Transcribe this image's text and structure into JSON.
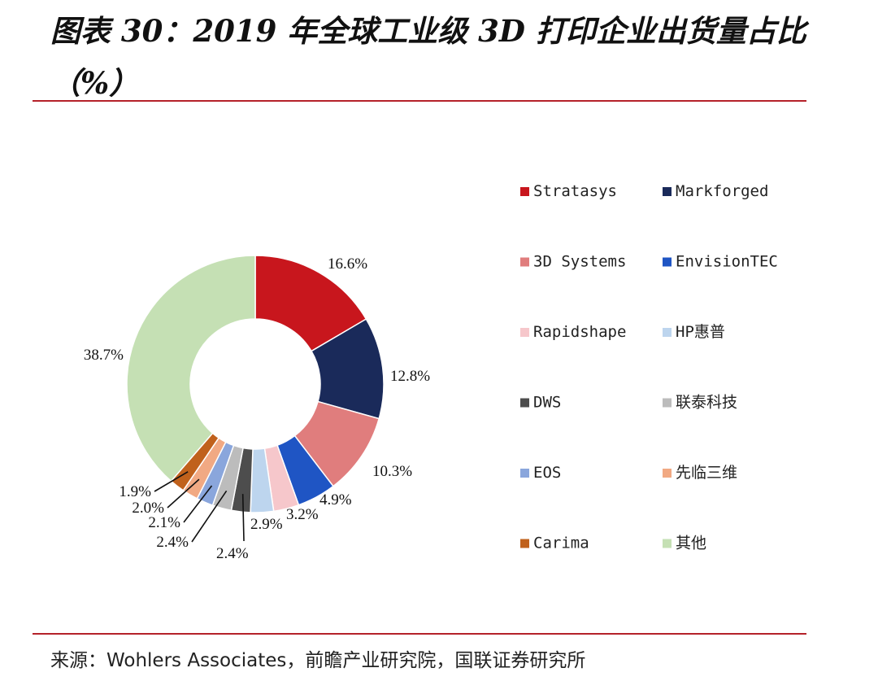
{
  "title": "图表 30：2019 年全球工业级 3D 打印企业出货量占比（%）",
  "source": "来源：Wohlers Associates，前瞻产业研究院，国联证券研究所",
  "chart_data": {
    "type": "pie",
    "style": "donut",
    "unit": "%",
    "legend_position": "right",
    "series": [
      {
        "name": "Stratasys",
        "value": 16.6,
        "label": "16.6%",
        "color": "#c8161d"
      },
      {
        "name": "Markforged",
        "value": 12.8,
        "label": "12.8%",
        "color": "#1a2a5a"
      },
      {
        "name": "3D Systems",
        "value": 10.3,
        "label": "10.3%",
        "color": "#e07d7d"
      },
      {
        "name": "EnvisionTEC",
        "value": 4.9,
        "label": "4.9%",
        "color": "#1f55c4"
      },
      {
        "name": "Rapidshape",
        "value": 3.2,
        "label": "3.2%",
        "color": "#f6c7cb"
      },
      {
        "name": "HP惠普",
        "value": 2.9,
        "label": "2.9%",
        "color": "#bdd5ee"
      },
      {
        "name": "DWS",
        "value": 2.4,
        "label": "2.4%",
        "color": "#4d4d4d"
      },
      {
        "name": "联泰科技",
        "value": 2.4,
        "label": "2.4%",
        "color": "#bcbcbc"
      },
      {
        "name": "EOS",
        "value": 2.1,
        "label": "2.1%",
        "color": "#8aa6dc"
      },
      {
        "name": "先临三维",
        "value": 2.0,
        "label": "2.0%",
        "color": "#f1a983"
      },
      {
        "name": "Carima",
        "value": 1.9,
        "label": "1.9%",
        "color": "#c0611c"
      },
      {
        "name": "其他",
        "value": 38.7,
        "label": "38.7%",
        "color": "#c5e0b4"
      }
    ]
  }
}
